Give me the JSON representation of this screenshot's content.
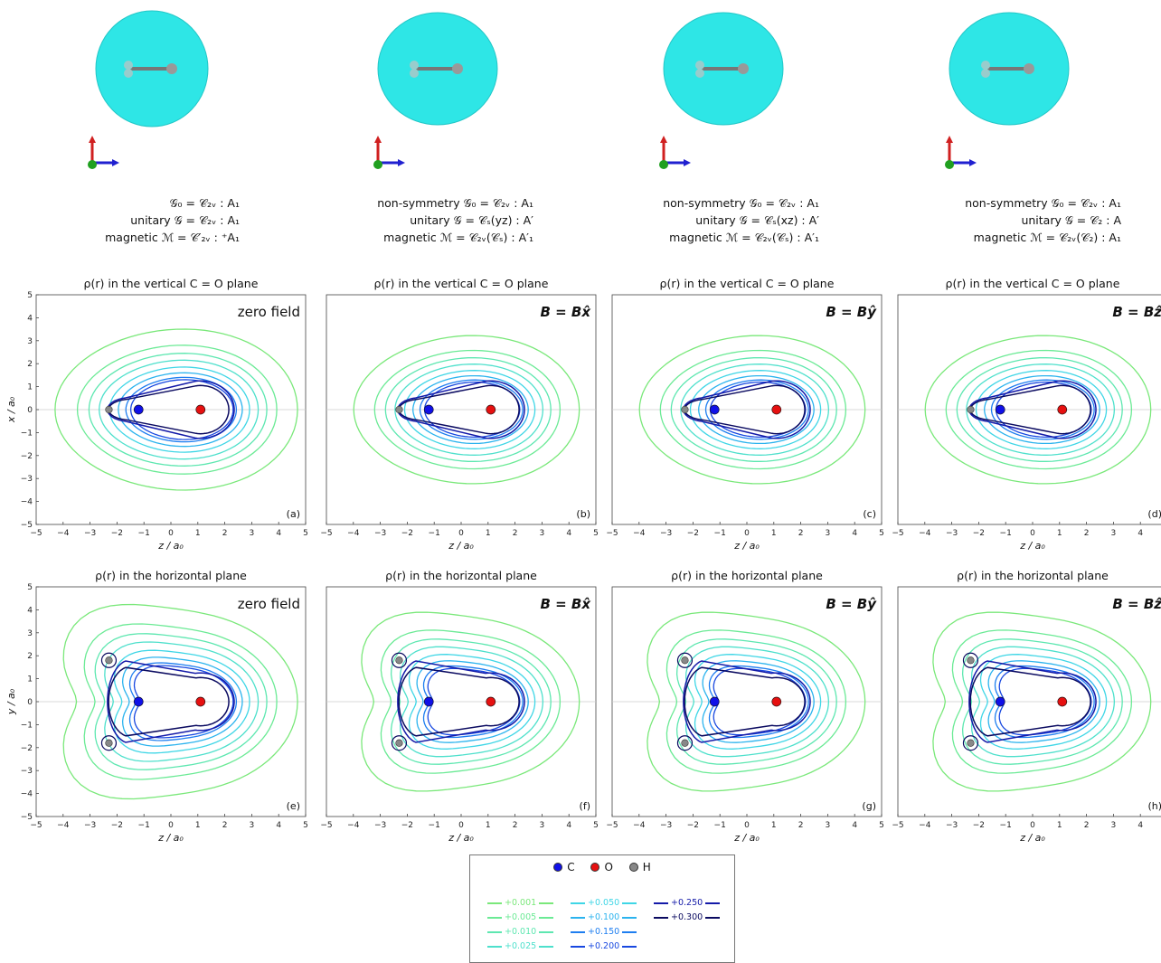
{
  "colors": {
    "C": "#1010e8",
    "O": "#e61010",
    "H": "#888888",
    "levels": [
      "#7ae87a",
      "#6bea95",
      "#5de7b0",
      "#4ee0cc",
      "#3fd6e6",
      "#2bb3ee",
      "#1e7ef0",
      "#1848e0",
      "#141aa8",
      "#0a0a60"
    ]
  },
  "icon_names": [
    "isosurface-mesh-icon",
    "axes-triad-icon"
  ],
  "symmetry": [
    {
      "rows": [
        {
          "label": "𝒢₀ = 𝒞₂ᵥ : A₁"
        },
        {
          "label": "unitary 𝒢 = 𝒞₂ᵥ : A₁"
        },
        {
          "label": "magnetic ℳ = 𝒞′₂ᵥ : ⁺A₁"
        }
      ]
    },
    {
      "rows": [
        {
          "label": "non-symmetry 𝒢₀ = 𝒞₂ᵥ      : A₁"
        },
        {
          "label": "unitary 𝒢 = 𝒞ₛ(yz)   : A′"
        },
        {
          "label": "magnetic ℳ = 𝒞₂ᵥ(𝒞ₛ) : A′₁"
        }
      ]
    },
    {
      "rows": [
        {
          "label": "non-symmetry 𝒢₀ = 𝒞₂ᵥ      : A₁"
        },
        {
          "label": "unitary 𝒢 = 𝒞ₛ(xz)   : A′"
        },
        {
          "label": "magnetic ℳ = 𝒞₂ᵥ(𝒞ₛ) : A′₁"
        }
      ]
    },
    {
      "rows": [
        {
          "label": "non-symmetry 𝒢₀ = 𝒞₂ᵥ      : A₁"
        },
        {
          "label": "unitary 𝒢 = 𝒞₂         : A"
        },
        {
          "label": "magnetic ℳ = 𝒞₂ᵥ(𝒞₂) : A₁"
        }
      ]
    }
  ],
  "chart_data": [
    {
      "type": "contour",
      "panel": "(a)",
      "title": "ρ(r) in the vertical C = O plane",
      "annotation": "zero field",
      "xlabel": "z / a₀",
      "ylabel": "x / a₀",
      "xlim": [
        -5,
        5
      ],
      "ylim": [
        -5,
        5
      ],
      "plane": "vertical",
      "field": "none"
    },
    {
      "type": "contour",
      "panel": "(b)",
      "title": "ρ(r) in the vertical C = O plane",
      "annotation": "B = Bx̂",
      "xlabel": "z / a₀",
      "ylabel": "",
      "xlim": [
        -5,
        5
      ],
      "ylim": [
        -5,
        5
      ],
      "plane": "vertical",
      "field": "x"
    },
    {
      "type": "contour",
      "panel": "(c)",
      "title": "ρ(r) in the vertical C = O plane",
      "annotation": "B = Bŷ",
      "xlabel": "z / a₀",
      "ylabel": "",
      "xlim": [
        -5,
        5
      ],
      "ylim": [
        -5,
        5
      ],
      "plane": "vertical",
      "field": "y"
    },
    {
      "type": "contour",
      "panel": "(d)",
      "title": "ρ(r) in the vertical C = O plane",
      "annotation": "B = Bẑ",
      "xlabel": "z / a₀",
      "ylabel": "",
      "xlim": [
        -5,
        5
      ],
      "ylim": [
        -5,
        5
      ],
      "plane": "vertical",
      "field": "z"
    },
    {
      "type": "contour",
      "panel": "(e)",
      "title": "ρ(r) in the horizontal plane",
      "annotation": "zero field",
      "xlabel": "z / a₀",
      "ylabel": "y / a₀",
      "xlim": [
        -5,
        5
      ],
      "ylim": [
        -5,
        5
      ],
      "plane": "horizontal",
      "field": "none"
    },
    {
      "type": "contour",
      "panel": "(f)",
      "title": "ρ(r) in the horizontal plane",
      "annotation": "B = Bx̂",
      "xlabel": "z / a₀",
      "ylabel": "",
      "xlim": [
        -5,
        5
      ],
      "ylim": [
        -5,
        5
      ],
      "plane": "horizontal",
      "field": "x"
    },
    {
      "type": "contour",
      "panel": "(g)",
      "title": "ρ(r) in the horizontal plane",
      "annotation": "B = Bŷ",
      "xlabel": "z / a₀",
      "ylabel": "",
      "xlim": [
        -5,
        5
      ],
      "ylim": [
        -5,
        5
      ],
      "plane": "horizontal",
      "field": "y"
    },
    {
      "type": "contour",
      "panel": "(h)",
      "title": "ρ(r) in the horizontal plane",
      "annotation": "B = Bẑ",
      "xlabel": "z / a₀",
      "ylabel": "",
      "xlim": [
        -5,
        5
      ],
      "ylim": [
        -5,
        5
      ],
      "plane": "horizontal",
      "field": "z"
    }
  ],
  "ticks": [
    "−5",
    "−4",
    "−3",
    "−2",
    "−1",
    "0",
    "1",
    "2",
    "3",
    "4",
    "5"
  ],
  "atoms_positions": {
    "C": [
      -1.2,
      0
    ],
    "O": [
      1.1,
      0
    ],
    "H_vertical": [
      -2.3,
      0
    ],
    "H_horizontal": [
      [
        -2.3,
        1.8
      ],
      [
        -2.3,
        -1.8
      ]
    ]
  },
  "legend": {
    "atoms": [
      {
        "label": "C"
      },
      {
        "label": "O"
      },
      {
        "label": "H"
      }
    ],
    "levels": [
      "+0.001",
      "+0.005",
      "+0.010",
      "+0.025",
      "+0.050",
      "+0.100",
      "+0.150",
      "+0.200",
      "+0.250",
      "+0.300"
    ]
  }
}
